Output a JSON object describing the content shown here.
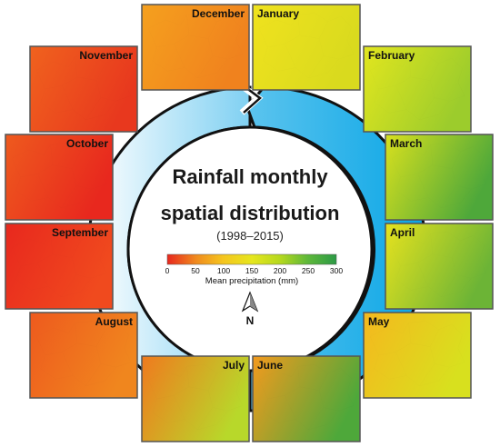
{
  "title_line1": "Rainfall monthly",
  "title_line2": "spatial distribution",
  "subtitle": "(1998–2015)",
  "legend": {
    "ticks": [
      "0",
      "50",
      "100",
      "150",
      "200",
      "250",
      "300"
    ],
    "label": "Mean precipitation (mm)",
    "range": [
      0,
      300
    ],
    "colors": [
      "#e8281e",
      "#f08a1e",
      "#f5c51e",
      "#e6e61e",
      "#b4d81e",
      "#5eb83a",
      "#2c9a46"
    ]
  },
  "north_label": "N",
  "months": [
    {
      "name": "January",
      "color_a": "#f0e21e",
      "color_b": "#d9da1e"
    },
    {
      "name": "February",
      "color_a": "#e2e61e",
      "color_b": "#9ccc2c"
    },
    {
      "name": "March",
      "color_a": "#d8e01e",
      "color_b": "#4ea83a"
    },
    {
      "name": "April",
      "color_a": "#e6e21e",
      "color_b": "#6cb436"
    },
    {
      "name": "May",
      "color_a": "#f5b81e",
      "color_b": "#d8e01e"
    },
    {
      "name": "June",
      "color_a": "#f39a1e",
      "color_b": "#4ea83a"
    },
    {
      "name": "July",
      "color_a": "#f07a1e",
      "color_b": "#b8d82a"
    },
    {
      "name": "August",
      "color_a": "#ee5a1e",
      "color_b": "#f0861e"
    },
    {
      "name": "September",
      "color_a": "#e8281e",
      "color_b": "#f04a1e"
    },
    {
      "name": "October",
      "color_a": "#ee5a1e",
      "color_b": "#e8281e"
    },
    {
      "name": "November",
      "color_a": "#f0621e",
      "color_b": "#e8381e"
    },
    {
      "name": "December",
      "color_a": "#f5a01e",
      "color_b": "#f0821e"
    }
  ]
}
